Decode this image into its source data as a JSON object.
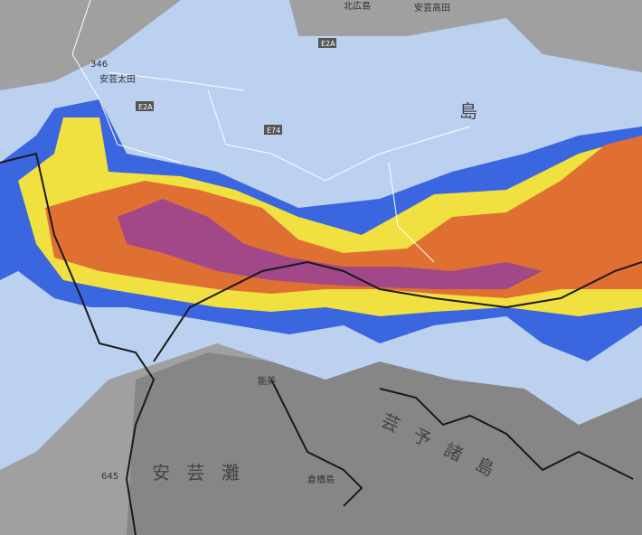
{
  "map": {
    "labels": [
      "北広島",
      "安芸高田",
      "346",
      "安芸太田",
      "E2A",
      "E2A",
      "E74",
      "島",
      "能美",
      "645",
      "倉橋島",
      "安 芸 灘",
      "芸 予 諸 島"
    ]
  }
}
